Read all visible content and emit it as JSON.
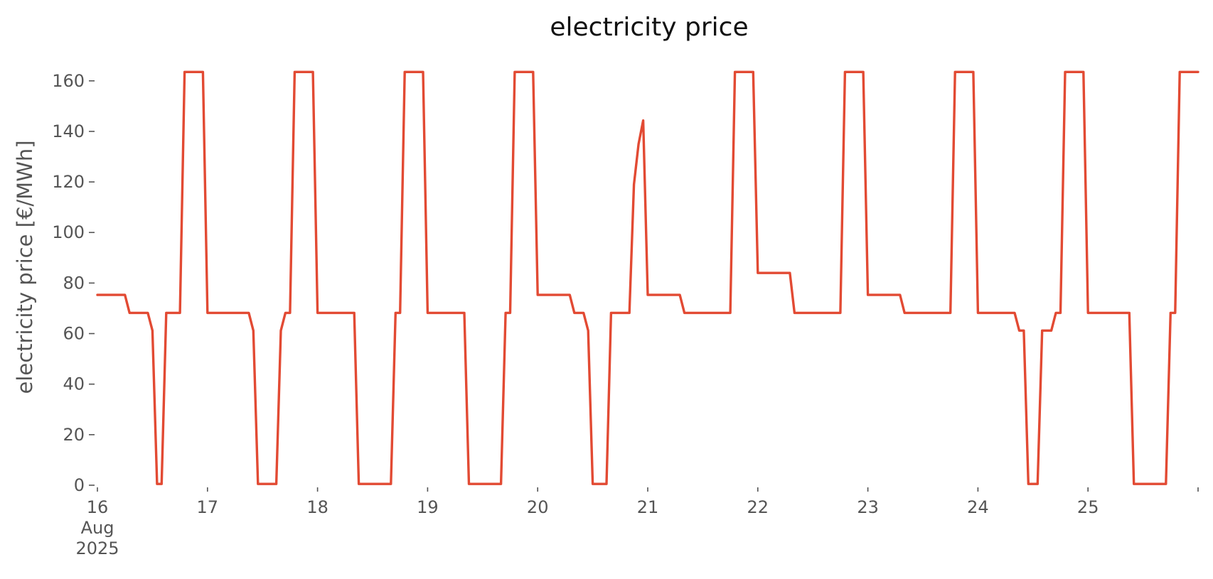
{
  "chart_data": {
    "type": "line",
    "title": "electricity price",
    "ylabel": "electricity price [€/MWh]",
    "xlabel": "",
    "xlim": [
      "2025-08-16T00:00",
      "2025-08-26T00:00"
    ],
    "ylim": [
      0,
      165
    ],
    "yticks": [
      0,
      20,
      40,
      60,
      80,
      100,
      120,
      140,
      160
    ],
    "xticks": [
      {
        "date": "2025-08-16T00:00",
        "lines": [
          "16",
          "Aug",
          "2025"
        ]
      },
      {
        "date": "2025-08-17T00:00",
        "lines": [
          "17"
        ]
      },
      {
        "date": "2025-08-18T00:00",
        "lines": [
          "18"
        ]
      },
      {
        "date": "2025-08-19T00:00",
        "lines": [
          "19"
        ]
      },
      {
        "date": "2025-08-20T00:00",
        "lines": [
          "20"
        ]
      },
      {
        "date": "2025-08-21T00:00",
        "lines": [
          "21"
        ]
      },
      {
        "date": "2025-08-22T00:00",
        "lines": [
          "22"
        ]
      },
      {
        "date": "2025-08-23T00:00",
        "lines": [
          "23"
        ]
      },
      {
        "date": "2025-08-24T00:00",
        "lines": [
          "24"
        ]
      },
      {
        "date": "2025-08-25T00:00",
        "lines": [
          "25"
        ]
      },
      {
        "date": "2025-08-26T00:00",
        "lines": [
          ""
        ]
      }
    ],
    "grid": false,
    "series": [
      {
        "color": "#e24a33",
        "points": [
          [
            "2025-08-16T00:00",
            75.3
          ],
          [
            "2025-08-16T06:00",
            75.3
          ],
          [
            "2025-08-16T07:00",
            68.2
          ],
          [
            "2025-08-16T11:00",
            68.2
          ],
          [
            "2025-08-16T12:00",
            61.2
          ],
          [
            "2025-08-16T13:00",
            0.5
          ],
          [
            "2025-08-16T14:00",
            0.5
          ],
          [
            "2025-08-16T15:00",
            68.2
          ],
          [
            "2025-08-16T18:00",
            68.2
          ],
          [
            "2025-08-16T19:00",
            163.5
          ],
          [
            "2025-08-16T23:00",
            163.5
          ],
          [
            "2025-08-17T00:00",
            68.2
          ],
          [
            "2025-08-17T09:00",
            68.2
          ],
          [
            "2025-08-17T10:00",
            61.2
          ],
          [
            "2025-08-17T11:00",
            0.5
          ],
          [
            "2025-08-17T15:00",
            0.5
          ],
          [
            "2025-08-17T16:00",
            61.2
          ],
          [
            "2025-08-17T17:00",
            68.2
          ],
          [
            "2025-08-17T18:00",
            68.2
          ],
          [
            "2025-08-17T19:00",
            163.5
          ],
          [
            "2025-08-17T23:00",
            163.5
          ],
          [
            "2025-08-18T00:00",
            68.2
          ],
          [
            "2025-08-18T08:00",
            68.2
          ],
          [
            "2025-08-18T09:00",
            0.5
          ],
          [
            "2025-08-18T16:00",
            0.5
          ],
          [
            "2025-08-18T17:00",
            68.2
          ],
          [
            "2025-08-18T18:00",
            68.2
          ],
          [
            "2025-08-18T19:00",
            163.5
          ],
          [
            "2025-08-18T23:00",
            163.5
          ],
          [
            "2025-08-19T00:00",
            68.2
          ],
          [
            "2025-08-19T08:00",
            68.2
          ],
          [
            "2025-08-19T09:00",
            0.5
          ],
          [
            "2025-08-19T16:00",
            0.5
          ],
          [
            "2025-08-19T17:00",
            68.2
          ],
          [
            "2025-08-19T18:00",
            68.2
          ],
          [
            "2025-08-19T19:00",
            163.5
          ],
          [
            "2025-08-19T23:00",
            163.5
          ],
          [
            "2025-08-20T00:00",
            75.3
          ],
          [
            "2025-08-20T07:00",
            75.3
          ],
          [
            "2025-08-20T08:00",
            68.2
          ],
          [
            "2025-08-20T10:00",
            68.2
          ],
          [
            "2025-08-20T11:00",
            61.2
          ],
          [
            "2025-08-20T12:00",
            0.5
          ],
          [
            "2025-08-20T15:00",
            0.5
          ],
          [
            "2025-08-20T16:00",
            68.2
          ],
          [
            "2025-08-20T20:00",
            68.2
          ],
          [
            "2025-08-20T21:00",
            119.0
          ],
          [
            "2025-08-20T22:00",
            135.0
          ],
          [
            "2025-08-20T23:00",
            144.3
          ],
          [
            "2025-08-21T00:00",
            75.3
          ],
          [
            "2025-08-21T07:00",
            75.3
          ],
          [
            "2025-08-21T08:00",
            68.2
          ],
          [
            "2025-08-21T18:00",
            68.2
          ],
          [
            "2025-08-21T19:00",
            163.5
          ],
          [
            "2025-08-21T23:00",
            163.5
          ],
          [
            "2025-08-22T00:00",
            84.0
          ],
          [
            "2025-08-22T07:00",
            84.0
          ],
          [
            "2025-08-22T08:00",
            68.2
          ],
          [
            "2025-08-22T18:00",
            68.2
          ],
          [
            "2025-08-22T19:00",
            163.5
          ],
          [
            "2025-08-22T23:00",
            163.5
          ],
          [
            "2025-08-23T00:00",
            75.3
          ],
          [
            "2025-08-23T07:00",
            75.3
          ],
          [
            "2025-08-23T08:00",
            68.2
          ],
          [
            "2025-08-23T18:00",
            68.2
          ],
          [
            "2025-08-23T19:00",
            163.5
          ],
          [
            "2025-08-23T23:00",
            163.5
          ],
          [
            "2025-08-24T00:00",
            68.2
          ],
          [
            "2025-08-24T08:00",
            68.2
          ],
          [
            "2025-08-24T09:00",
            61.2
          ],
          [
            "2025-08-24T10:00",
            61.2
          ],
          [
            "2025-08-24T11:00",
            0.5
          ],
          [
            "2025-08-24T13:00",
            0.5
          ],
          [
            "2025-08-24T14:00",
            61.2
          ],
          [
            "2025-08-24T16:00",
            61.2
          ],
          [
            "2025-08-24T17:00",
            68.2
          ],
          [
            "2025-08-24T18:00",
            68.2
          ],
          [
            "2025-08-24T19:00",
            163.5
          ],
          [
            "2025-08-24T23:00",
            163.5
          ],
          [
            "2025-08-25T00:00",
            68.2
          ],
          [
            "2025-08-25T09:00",
            68.2
          ],
          [
            "2025-08-25T10:00",
            0.5
          ],
          [
            "2025-08-25T17:00",
            0.5
          ],
          [
            "2025-08-25T18:00",
            68.2
          ],
          [
            "2025-08-25T19:00",
            68.2
          ],
          [
            "2025-08-25T20:00",
            163.5
          ],
          [
            "2025-08-26T00:00",
            163.5
          ]
        ]
      }
    ]
  }
}
